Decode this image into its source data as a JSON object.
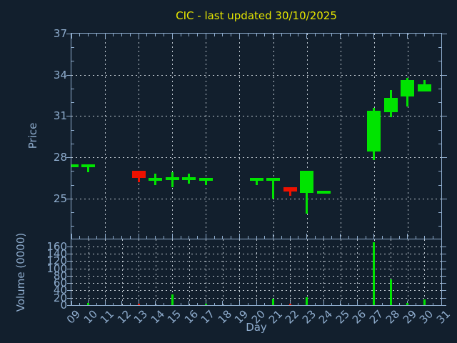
{
  "title": "CIC - last updated 30/10/2025",
  "colors": {
    "background": "#121f2d",
    "axis": "#8fadce",
    "title": "#e6e600",
    "up": "#00e400",
    "down": "#ee1100",
    "grid": "#c9d2da"
  },
  "chart_data": {
    "type": "candlestick-with-volume",
    "title": "CIC - last updated 30/10/2025",
    "price_axis": {
      "label": "Price",
      "ticks": [
        37,
        34,
        31,
        28,
        25
      ],
      "range": [
        22.1,
        37
      ],
      "grid": "dotted"
    },
    "volume_axis": {
      "label": "Volume (0000)",
      "ticks": [
        160,
        140,
        120,
        100,
        80,
        60,
        40,
        20,
        0
      ],
      "range": [
        0,
        178
      ],
      "grid": "dotted"
    },
    "x_axis": {
      "label": "Day",
      "tick_labels": [
        "09",
        "10",
        "11",
        "12",
        "13",
        "14",
        "15",
        "16",
        "17",
        "18",
        "19",
        "20",
        "21",
        "22",
        "23",
        "24",
        "25",
        "26",
        "27",
        "28",
        "29",
        "30",
        "31"
      ],
      "range": [
        9,
        31
      ],
      "price_gridline_days": [
        11,
        13,
        15,
        17,
        19,
        21,
        23,
        25,
        27,
        29
      ],
      "volume_gridline_days": [
        10,
        11,
        12,
        13,
        14,
        15,
        16,
        17,
        18,
        19,
        20,
        21,
        22,
        23,
        24,
        25,
        26,
        27,
        28,
        29,
        30
      ]
    },
    "candles": [
      {
        "day": 9,
        "open": 27.4,
        "high": 27.4,
        "low": 27.4,
        "close": 27.4,
        "volume": 0
      },
      {
        "day": 10,
        "open": 27.4,
        "high": 27.4,
        "low": 26.9,
        "close": 27.4,
        "volume": 5
      },
      {
        "day": 13,
        "open": 27.0,
        "high": 27.0,
        "low": 26.2,
        "close": 26.5,
        "volume": 3
      },
      {
        "day": 14,
        "open": 26.4,
        "high": 26.8,
        "low": 26.0,
        "close": 26.4,
        "volume": 0
      },
      {
        "day": 15,
        "open": 26.45,
        "high": 26.9,
        "low": 25.8,
        "close": 26.45,
        "volume": 29
      },
      {
        "day": 16,
        "open": 26.45,
        "high": 26.8,
        "low": 26.1,
        "close": 26.45,
        "volume": 0
      },
      {
        "day": 17,
        "open": 26.4,
        "high": 26.4,
        "low": 26.0,
        "close": 26.4,
        "volume": 3
      },
      {
        "day": 20,
        "open": 26.4,
        "high": 26.4,
        "low": 26.0,
        "close": 26.4,
        "volume": 0
      },
      {
        "day": 21,
        "open": 26.4,
        "high": 26.4,
        "low": 25.0,
        "close": 26.4,
        "volume": 18
      },
      {
        "day": 22,
        "open": 25.8,
        "high": 25.8,
        "low": 25.2,
        "close": 25.5,
        "volume": 3
      },
      {
        "day": 23,
        "open": 25.4,
        "high": 27.0,
        "low": 23.9,
        "close": 27.0,
        "volume": 22
      },
      {
        "day": 24,
        "open": 25.45,
        "high": 25.5,
        "low": 25.4,
        "close": 25.45,
        "volume": 0
      },
      {
        "day": 27,
        "open": 28.4,
        "high": 31.6,
        "low": 27.8,
        "close": 31.4,
        "volume": 170
      },
      {
        "day": 28,
        "open": 31.3,
        "high": 32.9,
        "low": 30.9,
        "close": 32.3,
        "volume": 70
      },
      {
        "day": 29,
        "open": 32.4,
        "high": 33.8,
        "low": 31.7,
        "close": 33.6,
        "volume": 5
      },
      {
        "day": 30,
        "open": 32.8,
        "high": 33.6,
        "low": 32.8,
        "close": 33.3,
        "volume": 16
      }
    ]
  }
}
